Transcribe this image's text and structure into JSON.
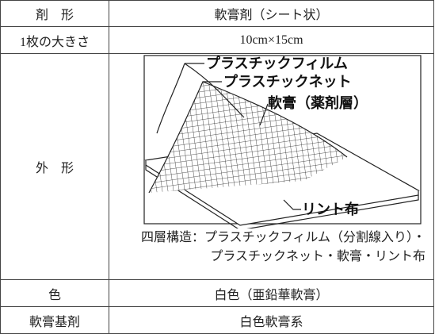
{
  "table": {
    "rows": [
      [
        "剤　形",
        "軟膏剤（シート状）"
      ],
      [
        "1枚の大きさ",
        "10cm×15cm"
      ],
      [
        "外　形",
        ""
      ],
      [
        "色",
        "白色（亜鉛華軟膏）"
      ],
      [
        "軟膏基剤",
        "白色軟膏系"
      ]
    ]
  },
  "figure": {
    "labels": [
      "プラスチックフィルム",
      "プラスチックネット",
      "軟膏（薬剤層）",
      "リント布"
    ],
    "caption": [
      "四層構造：プラスチックフィルム（分割線入り）・",
      "プラスチックネット・軟膏・リント布"
    ]
  }
}
